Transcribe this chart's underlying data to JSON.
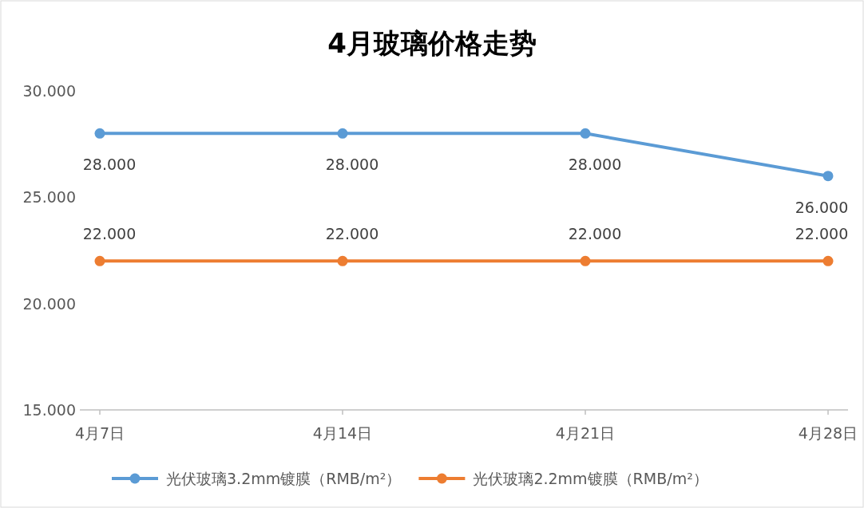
{
  "chart_data": {
    "type": "line",
    "title": "4月玻璃价格走势",
    "categories": [
      "4月7日",
      "4月14日",
      "4月21日",
      "4月28日"
    ],
    "series": [
      {
        "name": "光伏玻璃3.2mm镀膜（RMB/m²）",
        "color": "#5b9bd5",
        "values": [
          28,
          28,
          28,
          26
        ],
        "value_labels": [
          "28.000",
          "28.000",
          "28.000",
          "26.000"
        ]
      },
      {
        "name": "光伏玻璃2.2mm镀膜（RMB/m²）",
        "color": "#ed7d31",
        "values": [
          22,
          22,
          22,
          22
        ],
        "value_labels": [
          "22.000",
          "22.000",
          "22.000",
          "22.000"
        ]
      }
    ],
    "ylim": [
      15,
      30
    ],
    "yticks": [
      {
        "value": 15,
        "label": "15.000"
      },
      {
        "value": 20,
        "label": "20.000"
      },
      {
        "value": 25,
        "label": "25.000"
      },
      {
        "value": 30,
        "label": "30.000"
      }
    ],
    "grid": false,
    "legend": "bottom",
    "marker": "circle",
    "line_style": "solid"
  }
}
